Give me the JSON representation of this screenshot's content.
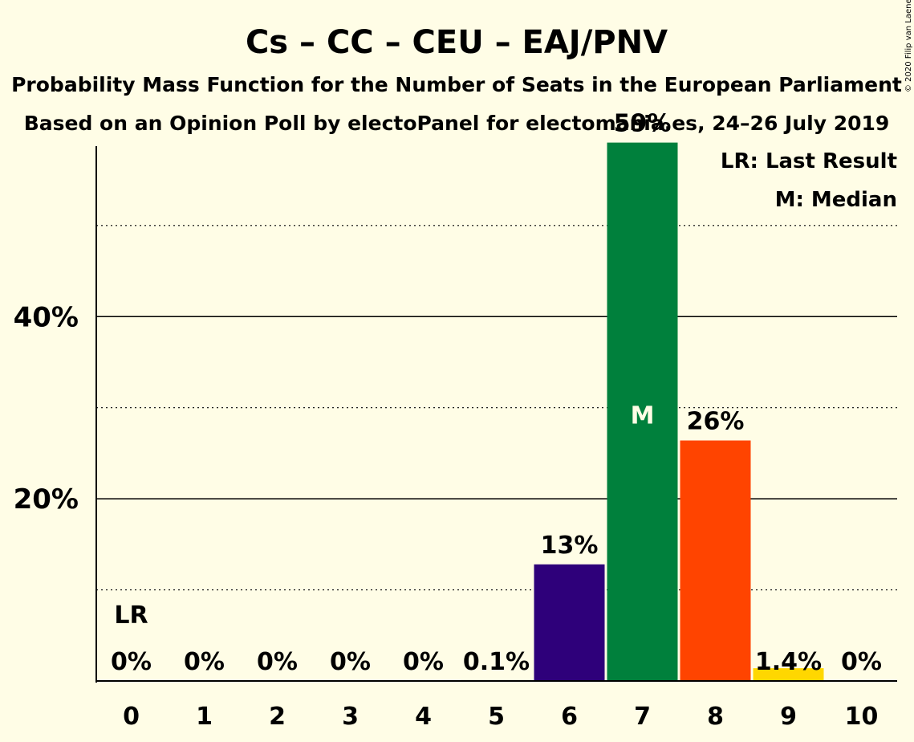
{
  "chart_data": {
    "type": "bar",
    "title": "Cs – CC – CEU – EAJ/PNV",
    "subtitle_1": "Probability Mass Function for the Number of Seats in the European Parliament",
    "subtitle_2": "Based on an Opinion Poll by electoPanel for electomania.es, 24–26 July 2019",
    "categories": [
      "0",
      "1",
      "2",
      "3",
      "4",
      "5",
      "6",
      "7",
      "8",
      "9",
      "10"
    ],
    "values": [
      0,
      0,
      0,
      0,
      0,
      0.1,
      12.8,
      59.1,
      26.4,
      1.4,
      0
    ],
    "data_labels": [
      "0%",
      "0%",
      "0%",
      "0%",
      "0%",
      "0.1%",
      "13%",
      "59%",
      "26%",
      "1.4%",
      "0%"
    ],
    "bar_colors": [
      "#7a7a7a",
      "#7a7a7a",
      "#7a7a7a",
      "#7a7a7a",
      "#7a7a7a",
      "#7a7a7a",
      "#2e007a",
      "#00803c",
      "#ff4400",
      "#ffd700",
      "#7a7a7a"
    ],
    "ylim": [
      0,
      64
    ],
    "yticks": [
      {
        "value": 20,
        "label": "20%"
      },
      {
        "value": 40,
        "label": "40%"
      }
    ],
    "minor_gridlines": [
      10,
      30,
      50
    ],
    "grid": true,
    "last_result": {
      "category": "0",
      "label": "LR"
    },
    "median": {
      "category": "7",
      "label": "M"
    },
    "legend": {
      "position": "top-right",
      "entries": [
        "LR: Last Result",
        "M: Median"
      ]
    },
    "copyright": "© 2020 Filip van Laenen"
  }
}
